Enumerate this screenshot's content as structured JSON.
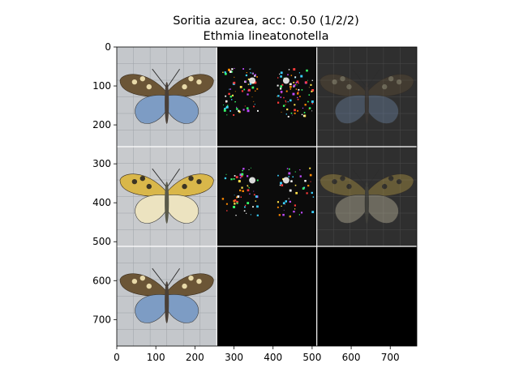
{
  "chart_data": {
    "type": "image_grid",
    "title_line1": "Soritia azurea, acc: 0.50 (1/2/2)",
    "title_line2": "Ethmia lineatonotella",
    "xlabel": "",
    "ylabel": "",
    "xlim": [
      0,
      768
    ],
    "ylim": [
      768,
      0
    ],
    "xticks": [
      0,
      100,
      200,
      300,
      400,
      500,
      600,
      700
    ],
    "yticks": [
      0,
      100,
      200,
      300,
      400,
      500,
      600,
      700
    ],
    "grid": false,
    "tile_size": 256,
    "tiles": [
      {
        "row": 0,
        "col": 0,
        "content": "butterfly-photo",
        "variant": "azure",
        "bg": "#c4c7cb"
      },
      {
        "row": 0,
        "col": 1,
        "content": "saliency-map",
        "variant": "azure",
        "bg": "#0b0b0b"
      },
      {
        "row": 0,
        "col": 2,
        "content": "masked-overlay",
        "variant": "azure",
        "bg": "#2f2f2f"
      },
      {
        "row": 1,
        "col": 0,
        "content": "butterfly-photo",
        "variant": "yellow",
        "bg": "#c8cacd"
      },
      {
        "row": 1,
        "col": 1,
        "content": "saliency-map",
        "variant": "yellow",
        "bg": "#0b0b0b"
      },
      {
        "row": 1,
        "col": 2,
        "content": "masked-overlay",
        "variant": "yellow",
        "bg": "#2f2f2f"
      },
      {
        "row": 2,
        "col": 0,
        "content": "butterfly-photo",
        "variant": "azure",
        "bg": "#c4c7cb"
      },
      {
        "row": 2,
        "col": 1,
        "content": "blank",
        "variant": "",
        "bg": "#000000"
      },
      {
        "row": 2,
        "col": 2,
        "content": "blank",
        "variant": "",
        "bg": "#000000"
      }
    ],
    "colors": {
      "separator": "#ffffff",
      "azure_forewing": "#6b5536",
      "azure_hindwing": "#7d9cc4",
      "yellow_forewing": "#d9b74a",
      "yellow_hindwing": "#ece3c0",
      "photo_grid": "#9ea2a7"
    }
  }
}
